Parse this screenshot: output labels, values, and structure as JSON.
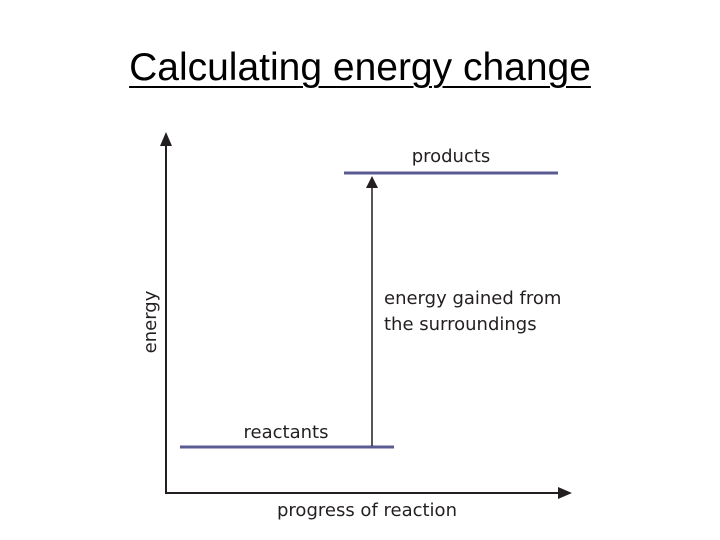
{
  "title": "Calculating energy change",
  "diagram": {
    "y_axis_label": "energy",
    "x_axis_label": "progress of reaction",
    "reactants_label": "reactants",
    "products_label": "products",
    "energy_change_label_line1": "energy gained from",
    "energy_change_label_line2": "the surroundings",
    "colors": {
      "level_line": "#5b5b94",
      "axis": "#231f20",
      "text": "#231f20"
    }
  }
}
